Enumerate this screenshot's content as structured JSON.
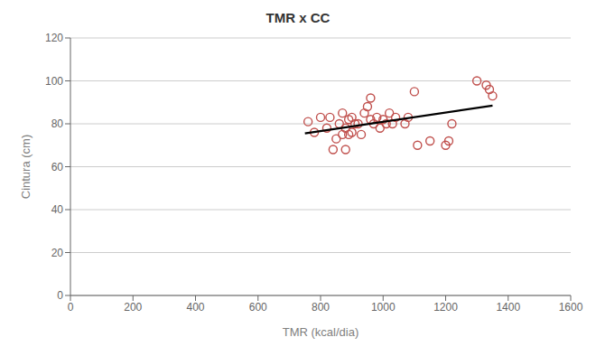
{
  "chart_data": {
    "type": "scatter",
    "title": "TMR x CC",
    "xlabel": "TMR (kcal/dia)",
    "ylabel": "Cintura (cm)",
    "xlim": [
      0,
      1600
    ],
    "ylim": [
      0,
      120
    ],
    "xticks": [
      0,
      200,
      400,
      600,
      800,
      1000,
      1200,
      1400,
      1600
    ],
    "yticks": [
      0,
      20,
      40,
      60,
      80,
      100,
      120
    ],
    "grid": "y",
    "series": [
      {
        "type": "scatter",
        "marker": "open_circle",
        "color": "#c0504d",
        "x": [
          760,
          780,
          800,
          820,
          830,
          840,
          850,
          860,
          870,
          870,
          880,
          880,
          890,
          890,
          900,
          900,
          910,
          920,
          930,
          940,
          950,
          960,
          960,
          970,
          980,
          990,
          1000,
          1010,
          1020,
          1030,
          1040,
          1070,
          1080,
          1100,
          1110,
          1150,
          1200,
          1210,
          1220,
          1300,
          1330,
          1340,
          1350
        ],
        "values": [
          81,
          76,
          83,
          78,
          83,
          68,
          73,
          80,
          85,
          75,
          78,
          68,
          82,
          75,
          83,
          76,
          80,
          80,
          75,
          85,
          88,
          82,
          92,
          80,
          83,
          78,
          82,
          80,
          85,
          80,
          83,
          80,
          83,
          95,
          70,
          72,
          70,
          72,
          80,
          100,
          98,
          96,
          93
        ]
      },
      {
        "type": "line",
        "line_style": "solid",
        "color": "#000000",
        "x": [
          750,
          1350
        ],
        "values": [
          75.5,
          88.5
        ]
      }
    ]
  }
}
